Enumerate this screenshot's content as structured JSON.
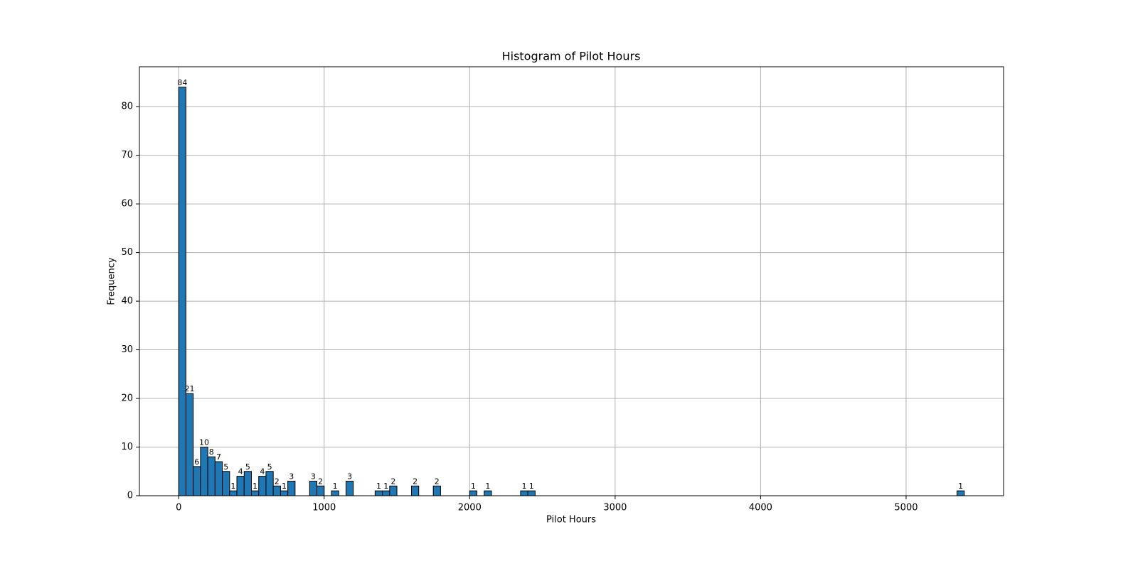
{
  "chart_data": {
    "type": "histogram",
    "title": "Histogram of Pilot Hours",
    "x_label": "Pilot Hours",
    "y_label": "Frequency",
    "bins": [
      0,
      50,
      100,
      150,
      200,
      250,
      300,
      350,
      400,
      450,
      500,
      550,
      600,
      650,
      700,
      750,
      800,
      850,
      900,
      950,
      1000,
      1050,
      1100,
      1150,
      1200,
      1250,
      1300,
      1350,
      1400,
      1450,
      1500,
      1550,
      1600,
      1650,
      1700,
      1750,
      1800,
      1850,
      1900,
      1950,
      2000,
      2050,
      2100,
      2150,
      2200,
      2250,
      2300,
      2350,
      2400,
      2450,
      2500,
      2550,
      2600,
      2650,
      2700,
      2750,
      2800,
      2850,
      2900,
      2950,
      3000,
      3050,
      3100,
      3150,
      3200,
      3250,
      3300,
      3350,
      3400,
      3450,
      3500,
      3550,
      3600,
      3650,
      3700,
      3750,
      3800,
      3850,
      3900,
      3950,
      4000,
      4050,
      4100,
      4150,
      4200,
      4250,
      4300,
      4350,
      4400,
      4450,
      4500,
      4550,
      4600,
      4650,
      4700,
      4750,
      4800,
      4850,
      4900,
      4950,
      5000,
      5050,
      5100,
      5150,
      5200,
      5250,
      5300,
      5350,
      5400
    ],
    "values": [
      84,
      21,
      6,
      10,
      8,
      7,
      5,
      1,
      4,
      5,
      1,
      4,
      5,
      2,
      1,
      3,
      0,
      0,
      3,
      2,
      0,
      1,
      0,
      3,
      0,
      0,
      0,
      1,
      1,
      2,
      0,
      0,
      2,
      0,
      0,
      2,
      0,
      0,
      0,
      0,
      1,
      0,
      1,
      0,
      0,
      0,
      0,
      1,
      1,
      0,
      0,
      0,
      0,
      0,
      0,
      0,
      0,
      0,
      0,
      0,
      0,
      0,
      0,
      0,
      0,
      0,
      0,
      0,
      0,
      0,
      0,
      0,
      0,
      0,
      0,
      0,
      0,
      0,
      0,
      0,
      0,
      0,
      0,
      0,
      0,
      0,
      0,
      0,
      0,
      0,
      0,
      0,
      0,
      0,
      0,
      0,
      0,
      0,
      0,
      0,
      0,
      0,
      0,
      0,
      0,
      0,
      0,
      1
    ],
    "color": "#1f77b4",
    "edgecolor": "#000000",
    "xlim": [
      -270,
      5670
    ],
    "xticks": [
      0,
      1000,
      2000,
      3000,
      4000,
      5000
    ],
    "ylim": [
      0,
      88.2
    ],
    "yticks": [
      0,
      10,
      20,
      30,
      40,
      50,
      60,
      70,
      80
    ],
    "grid": true
  }
}
